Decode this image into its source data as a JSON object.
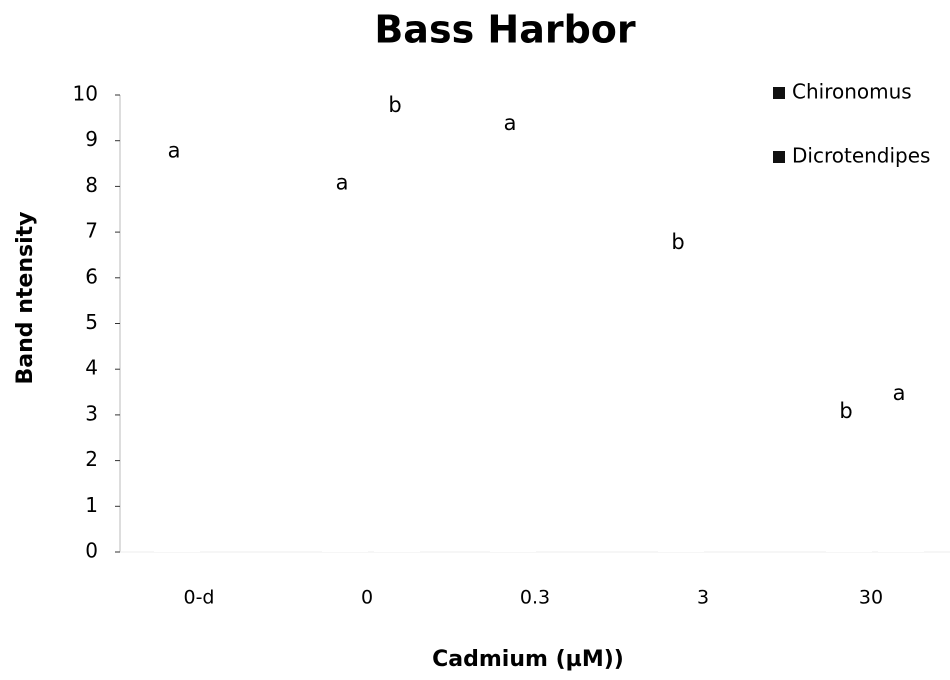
{
  "chart_data": {
    "type": "bar",
    "title": "Bass Harbor",
    "x_label": "Cadmium (µM))",
    "y_label": "Band ntensity",
    "categories": [
      "0-d",
      "0",
      "0.3",
      "3",
      "30"
    ],
    "series": [
      {
        "name": "Chironomus",
        "color": "#111111",
        "bar_fill": "#ffffff",
        "values": [
          8.5,
          7.8,
          9.1,
          6.5,
          2.8
        ],
        "annotations": [
          "a",
          "a",
          "a",
          "b",
          "b"
        ]
      },
      {
        "name": "Dicrotendipes",
        "color": "#111111",
        "bar_fill": "#ffffff",
        "values": [
          null,
          9.5,
          null,
          null,
          3.2
        ],
        "annotations": [
          null,
          "b",
          null,
          null,
          "a"
        ]
      }
    ],
    "ylim": [
      0,
      10
    ],
    "yticks": [
      0,
      1,
      2,
      3,
      4,
      5,
      6,
      7,
      8,
      9,
      10
    ],
    "grid": false,
    "legend": "top-right"
  }
}
